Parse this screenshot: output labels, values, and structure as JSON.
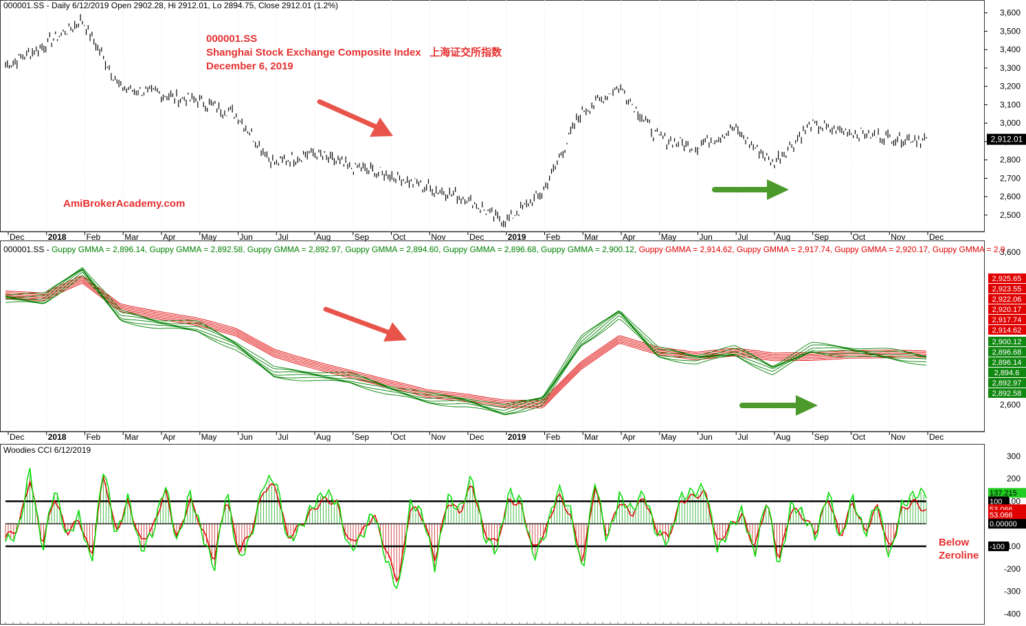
{
  "colors": {
    "price": "#000000",
    "short_ema": "#008000",
    "long_ema": "#e00000",
    "cci": "#00dd00",
    "turbo": "#dd0000",
    "arrow_red": "#e8544a",
    "arrow_green": "#4b9a2b",
    "annot": "#e53030"
  },
  "month_labels": [
    "Dec",
    "2018",
    "Feb",
    "Mar",
    "Apr",
    "May",
    "Jun",
    "Jul",
    "Aug",
    "Sep",
    "Oct",
    "Nov",
    "Dec",
    "2019",
    "Feb",
    "Mar",
    "Apr",
    "May",
    "Jun",
    "Jul",
    "Aug",
    "Sep",
    "Oct",
    "Nov",
    "Dec"
  ],
  "annotations": {
    "ticker": "000001.SS",
    "name": "Shanghai Stock Exchange Composite Index   上海证交所指数",
    "date": "December 6, 2019",
    "site": "AmiBrokerAcademy.com",
    "below_zero": "Below",
    "zeroline": "Zeroline"
  },
  "chart_data": [
    {
      "type": "line",
      "panel": "price",
      "header": "000001.SS - Daily 6/12/2019 Open 2902.28, Hi 2912.01, Lo 2894.75, Close 2912.01 (1.2%)",
      "ylim": [
        2440,
        3640
      ],
      "yticks": [
        "3,600",
        "3,500",
        "3,400",
        "3,300",
        "3,200",
        "3,100",
        "3,000",
        "2,900",
        "2,800",
        "2,700",
        "2,600",
        "2,500"
      ],
      "last_label": "2,912.01",
      "x_months": [
        0,
        1,
        2,
        3,
        4,
        5,
        6,
        7,
        8,
        9,
        10,
        11,
        12,
        13,
        14,
        15,
        16,
        17,
        18,
        19,
        20,
        21,
        22,
        23,
        24
      ],
      "close": [
        3310,
        3420,
        3560,
        3190,
        3160,
        3120,
        3050,
        2780,
        2840,
        2760,
        2720,
        2650,
        2590,
        2460,
        2620,
        3060,
        3200,
        2920,
        2870,
        2970,
        2780,
        2990,
        2950,
        2920,
        2912
      ]
    },
    {
      "type": "line",
      "panel": "gmma",
      "header_start": "000001.SS - ",
      "header_items": [
        {
          "text": "Guppy GMMA = 2,896.14, ",
          "group": "short"
        },
        {
          "text": "Guppy GMMA = 2,892.58, ",
          "group": "short"
        },
        {
          "text": "Guppy GMMA = 2,892.97, ",
          "group": "short"
        },
        {
          "text": "Guppy GMMA = 2,894.60, ",
          "group": "short"
        },
        {
          "text": "Guppy GMMA = 2,896.68, ",
          "group": "short"
        },
        {
          "text": "Guppy GMMA = 2,900.12, ",
          "group": "short"
        },
        {
          "text": "Guppy GMMA = 2,914.62, ",
          "group": "long"
        },
        {
          "text": "Guppy GMMA = 2,917.74, ",
          "group": "long"
        },
        {
          "text": "Guppy GMMA = 2,920.17, ",
          "group": "long"
        },
        {
          "text": "Guppy GMMA = 2,9",
          "group": "long"
        }
      ],
      "ylim": [
        2460,
        3640
      ],
      "yticks": [
        "3,600",
        "2,600"
      ],
      "value_labels_long": [
        "2,925.65",
        "2,923.55",
        "2,922.06",
        "2,920.17",
        "2,917.74",
        "2,914.62"
      ],
      "value_labels_short": [
        "2,900.12",
        "2,896.68",
        "2,896.14",
        "2,894.6",
        "2,892.97",
        "2,892.58"
      ],
      "short_group": [
        3300,
        3290,
        3480,
        3180,
        3130,
        3110,
        2990,
        2810,
        2790,
        2770,
        2700,
        2640,
        2620,
        2560,
        2630,
        3010,
        3200,
        2940,
        2900,
        2950,
        2830,
        2970,
        2950,
        2930,
        2896
      ],
      "long_group": [
        3320,
        3300,
        3420,
        3240,
        3190,
        3140,
        3070,
        2940,
        2870,
        2800,
        2730,
        2670,
        2650,
        2610,
        2600,
        2850,
        3030,
        2960,
        2920,
        2940,
        2910,
        2920,
        2935,
        2930,
        2920
      ]
    },
    {
      "type": "bar",
      "panel": "cci",
      "header": "Woodies CCI   6/12/2019",
      "ylim": [
        -420,
        330
      ],
      "yticks": [
        "300",
        "200",
        "100",
        "0",
        "-100",
        "-200",
        "-300",
        "-400"
      ],
      "levels": [
        100,
        0,
        -100
      ],
      "value_labels": [
        {
          "text": "137.215",
          "style": "green"
        },
        {
          "text": "100",
          "style": "black"
        },
        {
          "text": "53.066",
          "style": "red"
        },
        {
          "text": "53.066",
          "style": "red"
        },
        {
          "text": "0.00000",
          "style": "black"
        },
        {
          "text": "-100",
          "style": "black"
        }
      ],
      "cci": [
        -80,
        -40,
        240,
        -120,
        160,
        -60,
        40,
        -180,
        260,
        -60,
        120,
        -120,
        -40,
        180,
        -90,
        140,
        -40,
        -200,
        150,
        -160,
        -60,
        180,
        200,
        -80,
        -20,
        80,
        140,
        100,
        -120,
        -60,
        60,
        -160,
        -300,
        100,
        40,
        -200,
        120,
        60,
        210,
        -60,
        -120,
        140,
        100,
        -150,
        -40,
        160,
        60,
        -220,
        200,
        -80,
        120,
        60,
        140,
        -40,
        -80,
        120,
        140,
        160,
        -120,
        -20,
        60,
        -140,
        120,
        -200,
        90,
        40,
        -60,
        150,
        -80,
        120,
        -50,
        100,
        -160,
        80,
        130,
        137
      ],
      "turbo": [
        -60,
        -20,
        200,
        -90,
        120,
        -40,
        20,
        -150,
        220,
        -40,
        100,
        -80,
        -20,
        150,
        -70,
        110,
        -20,
        -160,
        120,
        -120,
        -40,
        150,
        170,
        -60,
        -10,
        60,
        110,
        90,
        -90,
        -40,
        40,
        -120,
        -260,
        80,
        30,
        -160,
        100,
        50,
        180,
        -40,
        -90,
        110,
        80,
        -120,
        -30,
        130,
        40,
        -180,
        170,
        -60,
        100,
        40,
        120,
        -30,
        -60,
        100,
        120,
        140,
        -90,
        -10,
        40,
        -110,
        100,
        -160,
        70,
        30,
        -40,
        120,
        -60,
        100,
        -40,
        80,
        -120,
        60,
        100,
        53
      ]
    }
  ]
}
